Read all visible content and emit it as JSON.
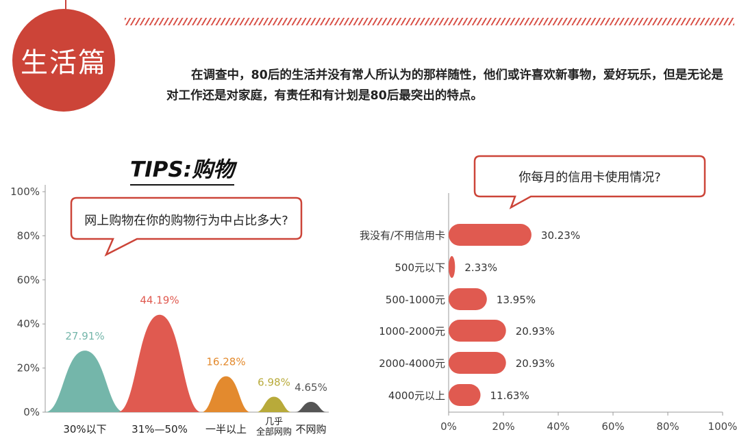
{
  "section": {
    "badge": "生活篇",
    "intro": "在调查中，80后的生活并没有常人所认为的那样随性，他们或许喜欢新事物，爱好玩乐，但是无论是对工作还是对家庭，有责任和有计划是80后最突出的特点。"
  },
  "tips_title": "TIPS:购物",
  "colors": {
    "accent": "#cc4438",
    "bar_red": "#e05a50",
    "teal": "#74b6aa",
    "orange": "#e38a2e",
    "olive": "#b8aa3a",
    "gray": "#555555"
  },
  "chart_data": [
    {
      "type": "bar",
      "question": "网上购物在你的购物行为中占比多大?",
      "categories": [
        "30%以下",
        "31%—50%",
        "一半以上",
        "几乎全部网购",
        "不网购"
      ],
      "category_lines": [
        [
          "30%以下"
        ],
        [
          "31%—50%"
        ],
        [
          "一半以上"
        ],
        [
          "几乎",
          "全部网购"
        ],
        [
          "不网购"
        ]
      ],
      "values": [
        27.91,
        44.19,
        16.28,
        6.98,
        4.65
      ],
      "value_labels": [
        "27.91%",
        "44.19%",
        "16.28%",
        "6.98%",
        "4.65%"
      ],
      "colors": [
        "#74b6aa",
        "#e05a50",
        "#e38a2e",
        "#b8aa3a",
        "#555555"
      ],
      "ylim": [
        0,
        100
      ],
      "yticks": [
        "0%",
        "20%",
        "40%",
        "60%",
        "80%",
        "100%"
      ],
      "orientation": "vertical"
    },
    {
      "type": "bar",
      "question": "你每月的信用卡使用情况?",
      "categories": [
        "我没有/不用信用卡",
        "500元以下",
        "500-1000元",
        "1000-2000元",
        "2000-4000元",
        "4000元以上"
      ],
      "values": [
        30.23,
        2.33,
        13.95,
        20.93,
        20.93,
        11.63
      ],
      "value_labels": [
        "30.23%",
        "2.33%",
        "13.95%",
        "20.93%",
        "20.93%",
        "11.63%"
      ],
      "xlim": [
        0,
        100
      ],
      "xticks": [
        "0%",
        "20%",
        "40%",
        "60%",
        "80%",
        "100%"
      ],
      "orientation": "horizontal",
      "color": "#e05a50"
    }
  ]
}
